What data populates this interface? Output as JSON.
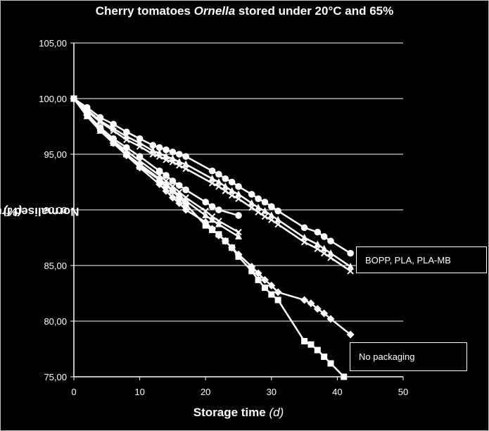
{
  "chart_data": {
    "type": "line",
    "title_main": "Cherry tomatoes ",
    "title_italic": "Ornella",
    "title_rest": " stored under 20°C and 65%",
    "xlabel_main": "Storage time ",
    "xlabel_unit": "(d)",
    "ylabel_main": "Normalised fruit weight  ",
    "ylabel_unit": "(%)",
    "xlim": [
      0,
      50
    ],
    "ylim": [
      75,
      105
    ],
    "xticks": [
      "0",
      "10",
      "20",
      "30",
      "40",
      "50"
    ],
    "yticks": [
      "75,00",
      "80,00",
      "85,00",
      "90,00",
      "95,00",
      "100,00",
      "105,00"
    ],
    "grid": "horizontal",
    "annotations": [
      "BOPP, PLA, PLA-MB",
      "No packaging"
    ],
    "series": [
      {
        "marker": "circle",
        "points": [
          [
            0,
            100
          ],
          [
            2,
            99.2
          ],
          [
            4,
            98.3
          ],
          [
            6,
            97.7
          ],
          [
            8,
            97
          ],
          [
            10,
            96.4
          ],
          [
            12,
            95.8
          ],
          [
            13,
            95.6
          ],
          [
            14,
            95.4
          ],
          [
            15,
            95.2
          ],
          [
            16,
            95
          ],
          [
            17,
            94.8
          ],
          [
            21,
            93.5
          ],
          [
            22,
            93.2
          ],
          [
            23,
            92.8
          ],
          [
            24,
            92.5
          ],
          [
            25,
            92.1
          ],
          [
            27,
            91.4
          ],
          [
            28,
            91
          ],
          [
            29,
            90.7
          ],
          [
            30,
            90.3
          ],
          [
            31,
            89.9
          ],
          [
            35,
            88.4
          ],
          [
            37,
            88
          ],
          [
            38,
            87.6
          ],
          [
            39,
            87.2
          ],
          [
            42,
            86.1
          ]
        ]
      },
      {
        "marker": "triangle",
        "points": [
          [
            0,
            100
          ],
          [
            2,
            99
          ],
          [
            4,
            98
          ],
          [
            6,
            97.3
          ],
          [
            8,
            96.6
          ],
          [
            10,
            96
          ],
          [
            12,
            95.3
          ],
          [
            13,
            95.1
          ],
          [
            14,
            94.8
          ],
          [
            15,
            94.6
          ],
          [
            16,
            94.3
          ],
          [
            17,
            94.1
          ],
          [
            21,
            92.8
          ],
          [
            22,
            92.5
          ],
          [
            23,
            92.1
          ],
          [
            24,
            91.7
          ],
          [
            25,
            91.4
          ],
          [
            27,
            90.6
          ],
          [
            28,
            90.2
          ],
          [
            29,
            89.9
          ],
          [
            30,
            89.5
          ],
          [
            31,
            89.1
          ],
          [
            35,
            87.5
          ],
          [
            37,
            86.9
          ],
          [
            38,
            86.5
          ],
          [
            39,
            86.1
          ],
          [
            42,
            84.9
          ]
        ]
      },
      {
        "marker": "cross",
        "points": [
          [
            0,
            100
          ],
          [
            2,
            98.9
          ],
          [
            4,
            97.9
          ],
          [
            6,
            97.1
          ],
          [
            8,
            96.3
          ],
          [
            10,
            95.7
          ],
          [
            12,
            95
          ],
          [
            13,
            94.8
          ],
          [
            14,
            94.5
          ],
          [
            15,
            94.3
          ],
          [
            16,
            94
          ],
          [
            17,
            93.7
          ],
          [
            21,
            92.4
          ],
          [
            22,
            92.1
          ],
          [
            23,
            91.7
          ],
          [
            24,
            91.3
          ],
          [
            25,
            91
          ],
          [
            27,
            90.2
          ],
          [
            28,
            89.8
          ],
          [
            29,
            89.4
          ],
          [
            30,
            89.1
          ],
          [
            31,
            88.7
          ],
          [
            35,
            87.1
          ],
          [
            37,
            86.5
          ],
          [
            38,
            86.1
          ],
          [
            39,
            85.7
          ],
          [
            42,
            84.5
          ]
        ]
      },
      {
        "marker": "circle",
        "points": [
          [
            0,
            100
          ],
          [
            2,
            98.6
          ],
          [
            4,
            97.4
          ],
          [
            6,
            96.4
          ],
          [
            8,
            95.6
          ],
          [
            10,
            94.8
          ],
          [
            13,
            93.5
          ],
          [
            14,
            93.1
          ],
          [
            15,
            92.6
          ],
          [
            16,
            92.2
          ],
          [
            17,
            91.8
          ],
          [
            20,
            90.7
          ],
          [
            21,
            90.3
          ],
          [
            22,
            90
          ],
          [
            25,
            89.5
          ]
        ]
      },
      {
        "marker": "triangle",
        "points": [
          [
            0,
            100
          ],
          [
            2,
            98.4
          ],
          [
            4,
            97.1
          ],
          [
            6,
            96
          ],
          [
            8,
            95
          ],
          [
            10,
            94.1
          ],
          [
            13,
            92.8
          ],
          [
            14,
            92.3
          ],
          [
            15,
            91.8
          ],
          [
            16,
            91.3
          ],
          [
            17,
            90.8
          ],
          [
            20,
            89.5
          ],
          [
            21,
            89.1
          ],
          [
            22,
            88.7
          ],
          [
            25,
            87.6
          ]
        ]
      },
      {
        "marker": "cross",
        "points": [
          [
            0,
            100
          ],
          [
            2,
            98.5
          ],
          [
            4,
            97.3
          ],
          [
            6,
            96.2
          ],
          [
            8,
            95.3
          ],
          [
            10,
            94.4
          ],
          [
            13,
            93.1
          ],
          [
            14,
            92.6
          ],
          [
            15,
            92.1
          ],
          [
            16,
            91.6
          ],
          [
            17,
            91.1
          ],
          [
            20,
            89.9
          ],
          [
            21,
            89.4
          ],
          [
            22,
            89
          ],
          [
            25,
            88
          ]
        ]
      },
      {
        "marker": "diamond",
        "points": [
          [
            0,
            100
          ],
          [
            2,
            98.5
          ],
          [
            4,
            97.3
          ],
          [
            6,
            96
          ],
          [
            8,
            94.9
          ],
          [
            10,
            93.8
          ],
          [
            13,
            92.3
          ],
          [
            14,
            91.7
          ],
          [
            15,
            91.1
          ],
          [
            16,
            90.6
          ],
          [
            17,
            90
          ],
          [
            20,
            88.9
          ],
          [
            21,
            88.3
          ],
          [
            22,
            87.7
          ],
          [
            23,
            87.2
          ],
          [
            24,
            86.6
          ],
          [
            25,
            86
          ],
          [
            27,
            84.9
          ],
          [
            28,
            84.3
          ],
          [
            29,
            83.7
          ],
          [
            30,
            83.2
          ],
          [
            31,
            82.6
          ],
          [
            35,
            81.9
          ],
          [
            36,
            81.6
          ],
          [
            37,
            81.1
          ],
          [
            38,
            80.7
          ],
          [
            39,
            80.2
          ],
          [
            42,
            78.8
          ]
        ]
      },
      {
        "marker": "square",
        "points": [
          [
            0,
            100
          ],
          [
            2,
            98.7
          ],
          [
            4,
            97.3
          ],
          [
            6,
            96.2
          ],
          [
            8,
            95
          ],
          [
            10,
            93.9
          ],
          [
            13,
            92.7
          ],
          [
            14,
            92.2
          ],
          [
            15,
            91.7
          ],
          [
            16,
            91.1
          ],
          [
            17,
            90.5
          ],
          [
            20,
            88.6
          ],
          [
            21,
            88.2
          ],
          [
            22,
            87.8
          ],
          [
            23,
            87.2
          ],
          [
            24,
            86.6
          ],
          [
            25,
            85.8
          ],
          [
            27,
            84.5
          ],
          [
            28,
            83.7
          ],
          [
            29,
            83
          ],
          [
            30,
            82.4
          ],
          [
            31,
            81.9
          ],
          [
            35,
            78.2
          ],
          [
            36,
            77.9
          ],
          [
            37,
            77.4
          ],
          [
            38,
            76.8
          ],
          [
            39,
            76.2
          ],
          [
            41,
            75
          ]
        ]
      }
    ]
  }
}
